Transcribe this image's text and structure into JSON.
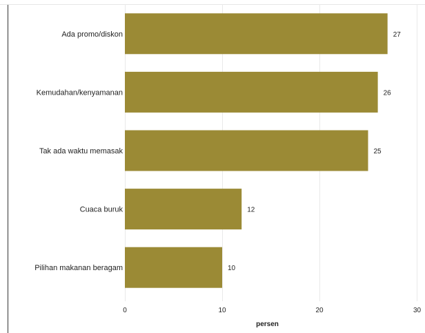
{
  "chart_data": {
    "type": "bar",
    "orientation": "horizontal",
    "categories": [
      "Ada promo/diskon",
      "Kemudahan/kenyamanan",
      "Tak ada waktu memasak",
      "Cuaca buruk",
      "Pilihan makanan beragam"
    ],
    "values": [
      27,
      26,
      25,
      12,
      10
    ],
    "title": "",
    "xlabel": "persen",
    "ylabel": "",
    "xlim": [
      0,
      30
    ],
    "xticks": [
      0,
      10,
      20,
      30
    ],
    "grid": "vertical",
    "legend": "none",
    "bar_color": "#9b8a35"
  }
}
